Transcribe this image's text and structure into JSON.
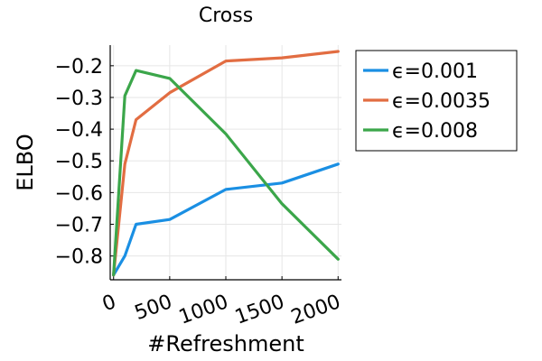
{
  "chart_data": {
    "type": "line",
    "title": "Cross",
    "xlabel": "#Refreshment",
    "ylabel": "ELBO",
    "xlim": [
      -30,
      2030
    ],
    "ylim": [
      -0.875,
      -0.135
    ],
    "xticks": [
      0,
      500,
      1000,
      1500,
      2000
    ],
    "xtick_labels": [
      "0",
      "500",
      "1000",
      "1500",
      "2000"
    ],
    "yticks": [
      -0.8,
      -0.7,
      -0.6,
      -0.5,
      -0.4,
      -0.3,
      -0.2
    ],
    "ytick_labels": [
      "−0.8",
      "−0.7",
      "−0.6",
      "−0.5",
      "−0.4",
      "−0.3",
      "−0.2"
    ],
    "grid": true,
    "legend_position": "outside-top-right",
    "series": [
      {
        "name": "ϵ=0.001",
        "color": "#1a8fe3",
        "x": [
          0,
          100,
          200,
          500,
          1000,
          1500,
          2000
        ],
        "y": [
          -0.86,
          -0.8,
          -0.7,
          -0.685,
          -0.59,
          -0.57,
          -0.51
        ]
      },
      {
        "name": "ϵ=0.0035",
        "color": "#e26d42",
        "x": [
          0,
          100,
          200,
          500,
          1000,
          1500,
          2000
        ],
        "y": [
          -0.86,
          -0.51,
          -0.37,
          -0.285,
          -0.185,
          -0.175,
          -0.155
        ]
      },
      {
        "name": "ϵ=0.008",
        "color": "#3ba64a",
        "x": [
          0,
          100,
          200,
          500,
          1000,
          1500,
          2000
        ],
        "y": [
          -0.86,
          -0.295,
          -0.215,
          -0.24,
          -0.415,
          -0.635,
          -0.81
        ]
      }
    ]
  }
}
